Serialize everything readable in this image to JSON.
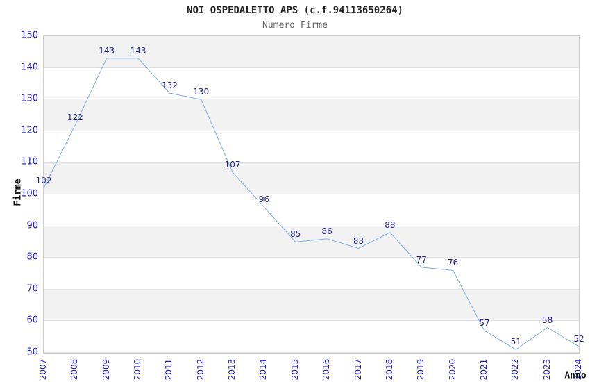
{
  "chart_data": {
    "type": "line",
    "title": "NOI OSPEDALETTO APS (c.f.94113650264)",
    "subtitle": "Numero Firme",
    "xlabel": "Anno",
    "ylabel": "Firme",
    "x": [
      "2007",
      "2008",
      "2009",
      "2010",
      "2011",
      "2012",
      "2013",
      "2014",
      "2015",
      "2016",
      "2017",
      "2018",
      "2019",
      "2020",
      "2021",
      "2022",
      "2023",
      "2024"
    ],
    "values": [
      102,
      122,
      143,
      143,
      132,
      130,
      107,
      96,
      85,
      86,
      83,
      88,
      77,
      76,
      57,
      51,
      58,
      52
    ],
    "ylim": [
      50,
      150
    ],
    "ytick_step": 10,
    "legend": "none",
    "grid": "alternating horizontal bands, top band gray",
    "colors": {
      "line": "#7eade8",
      "data_label": "#1c1c8c",
      "tick_label": "#2222cc",
      "title": "#222222",
      "subtitle": "#666666",
      "axis_title": "#111111",
      "band_gray": "#f2f2f2",
      "gridline": "#e2e2e2",
      "plot_border": "#cbcbcb"
    }
  }
}
